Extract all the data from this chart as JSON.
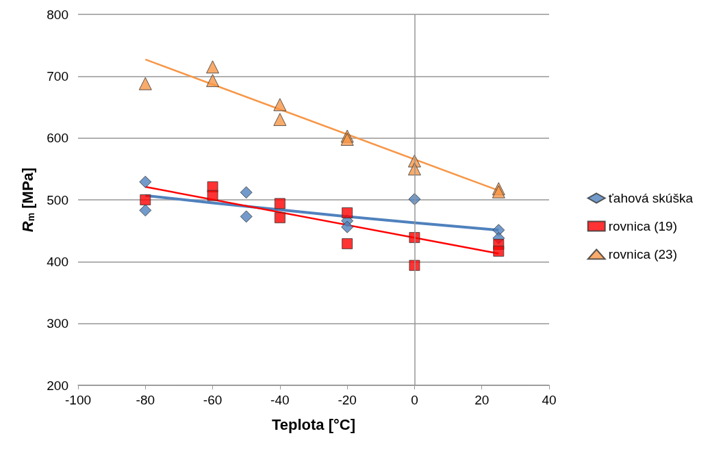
{
  "chart_data": {
    "type": "scatter",
    "xlabel": "Teplota [°C]",
    "ylabel": "R$_{m}$ [MPa]",
    "xlim": [
      -100,
      40
    ],
    "xticks": [
      -100,
      -80,
      -60,
      -40,
      -20,
      0,
      20,
      40
    ],
    "ylim": [
      200,
      800
    ],
    "yticks": [
      200,
      300,
      400,
      500,
      600,
      700,
      800
    ],
    "grid": "y",
    "legend": "right",
    "ref_lines": [
      {
        "axis": "x",
        "value": 0,
        "color": "#969696"
      }
    ],
    "series": [
      {
        "name": "ťahová skúška",
        "color": "#4f81bd",
        "marker": "diamond",
        "x": [
          -80,
          -80,
          -50,
          -50,
          -20,
          -20,
          0,
          25,
          25
        ],
        "values": [
          529,
          483,
          512,
          473,
          466,
          456,
          501,
          451,
          438
        ]
      },
      {
        "name": "rovnica (19)",
        "color": "#ff0000",
        "marker": "square",
        "x": [
          -80,
          -60,
          -60,
          -40,
          -40,
          -20,
          -20,
          0,
          0,
          25,
          25
        ],
        "values": [
          500,
          521,
          507,
          494,
          471,
          479,
          429,
          439,
          394,
          428,
          417
        ]
      },
      {
        "name": "rovnica (23)",
        "color": "#f79646",
        "marker": "triangle",
        "x": [
          -80,
          -60,
          -60,
          -40,
          -40,
          -20,
          -20,
          0,
          0,
          25,
          25
        ],
        "values": [
          688,
          715,
          693,
          654,
          630,
          603,
          598,
          563,
          550,
          518,
          513
        ]
      },
      {
        "type": "line",
        "color": "#4f81bd",
        "marker": "none",
        "x": [
          -80,
          -60,
          -40,
          -20,
          0,
          25
        ],
        "values": [
          507,
          495,
          484,
          473,
          463,
          451
        ]
      },
      {
        "type": "line",
        "color": "#ff0000",
        "marker": "none",
        "x": [
          -80,
          25
        ],
        "values": [
          521,
          413
        ]
      },
      {
        "type": "line",
        "color": "#f79646",
        "marker": "none",
        "x": [
          -80,
          25
        ],
        "values": [
          727,
          515
        ]
      }
    ]
  }
}
